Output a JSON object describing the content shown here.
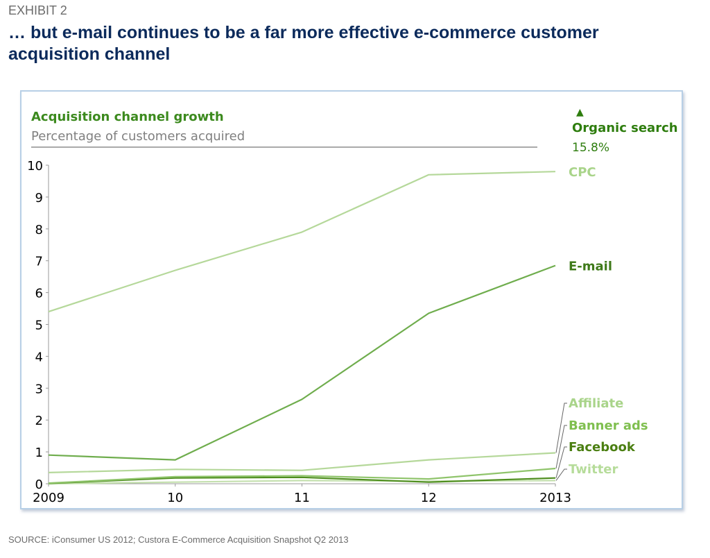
{
  "header": {
    "exhibit": "EXHIBIT 2",
    "title": "… but e-mail continues to be a far more effective e-commerce customer acquisition channel"
  },
  "footer": {
    "source": "SOURCE: iConsumer US 2012; Custora E-Commerce Acquisition Snapshot Q2 2013"
  },
  "colors": {
    "title": "#0b2a5b",
    "panel_border": "#b7cfe6",
    "cpc": "#b5d89a",
    "email": "#6fad4d",
    "affiliate": "#b5d89a",
    "banner_ads": "#8fc46b",
    "facebook": "#4f8e1f",
    "twitter": "#c4e0ae",
    "chart_title": "#3c8a1e",
    "chart_subtitle": "#808080"
  },
  "chart_data": {
    "type": "line",
    "title": "Acquisition channel growth",
    "subtitle": "Percentage of customers acquired",
    "callout": {
      "marker": "▲",
      "label": "Organic search",
      "value": "15.8%"
    },
    "x": [
      "2009",
      "10",
      "11",
      "12",
      "2013"
    ],
    "ylim": [
      0,
      10
    ],
    "yticks": [
      "0",
      "1",
      "2",
      "3",
      "4",
      "5",
      "6",
      "7",
      "8",
      "9",
      "10"
    ],
    "grid": false,
    "series": [
      {
        "name": "CPC",
        "key": "cpc",
        "values": [
          5.4,
          6.7,
          7.9,
          9.7,
          9.8
        ]
      },
      {
        "name": "E-mail",
        "key": "email",
        "values": [
          0.9,
          0.75,
          2.65,
          5.35,
          6.85
        ]
      },
      {
        "name": "Affiliate",
        "key": "affiliate",
        "values": [
          0.35,
          0.45,
          0.42,
          0.75,
          0.97
        ]
      },
      {
        "name": "Banner ads",
        "key": "banner_ads",
        "values": [
          0.02,
          0.22,
          0.25,
          0.15,
          0.48
        ]
      },
      {
        "name": "Facebook",
        "key": "facebook",
        "values": [
          0.01,
          0.18,
          0.2,
          0.05,
          0.18
        ]
      },
      {
        "name": "Twitter",
        "key": "twitter",
        "values": [
          0.0,
          0.05,
          0.1,
          0.08,
          0.1
        ]
      }
    ]
  }
}
